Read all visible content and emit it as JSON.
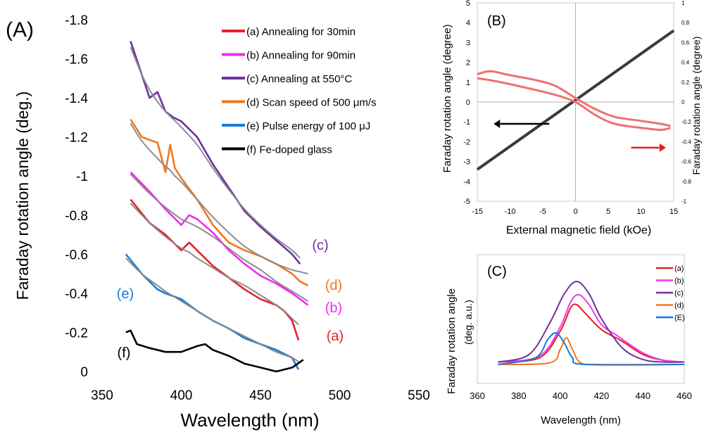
{
  "chart_data": [
    {
      "panel": "(A)",
      "type": "line",
      "xlabel": "Wavelength (nm)",
      "ylabel": "Faraday rotation angle (deg.)",
      "xlim": [
        350,
        550
      ],
      "ylim": [
        0,
        -1.8
      ],
      "y_inverted": true,
      "x_ticks": [
        "350",
        "400",
        "450",
        "500",
        "550"
      ],
      "y_ticks": [
        "-1.8",
        "-1.6",
        "-1.4",
        "-1.2",
        "-1",
        "-0.8",
        "-0.6",
        "-0.4",
        "-0.2",
        "0"
      ],
      "legend_position": "top-right",
      "fit_color": "#8c8c8c",
      "series": [
        {
          "name": "(a) Annealing for 30min",
          "label": "(a)",
          "color": "#e8202a",
          "x": [
            368,
            380,
            390,
            400,
            405,
            410,
            420,
            430,
            440,
            450,
            460,
            465,
            470,
            474
          ],
          "y": [
            -0.88,
            -0.76,
            -0.7,
            -0.62,
            -0.66,
            -0.62,
            -0.54,
            -0.48,
            -0.42,
            -0.37,
            -0.34,
            -0.31,
            -0.26,
            -0.16
          ],
          "fit": [
            -0.86,
            -0.76,
            -0.69,
            -0.63,
            -0.61,
            -0.58,
            -0.53,
            -0.48,
            -0.44,
            -0.39,
            -0.34,
            -0.31,
            -0.27,
            -0.24
          ]
        },
        {
          "name": "(b) Annealing for 90min",
          "label": "(b)",
          "color": "#ee2cf0",
          "x": [
            368,
            380,
            390,
            400,
            405,
            410,
            420,
            430,
            440,
            450,
            460,
            470,
            480
          ],
          "y": [
            -1.02,
            -0.92,
            -0.83,
            -0.75,
            -0.8,
            -0.78,
            -0.71,
            -0.62,
            -0.55,
            -0.49,
            -0.45,
            -0.4,
            -0.34
          ],
          "fit": [
            -1.01,
            -0.91,
            -0.84,
            -0.78,
            -0.76,
            -0.74,
            -0.69,
            -0.63,
            -0.57,
            -0.52,
            -0.46,
            -0.41,
            -0.36
          ]
        },
        {
          "name": "(c) Annealing at 550°C",
          "label": "(c)",
          "color": "#7030a0",
          "x": [
            368,
            375,
            380,
            385,
            390,
            395,
            400,
            410,
            420,
            430,
            440,
            450,
            460,
            470,
            475
          ],
          "y": [
            -1.69,
            -1.52,
            -1.4,
            -1.43,
            -1.33,
            -1.3,
            -1.28,
            -1.2,
            -1.06,
            -0.94,
            -0.82,
            -0.74,
            -0.67,
            -0.6,
            -0.55
          ],
          "fit": [
            -1.66,
            -1.52,
            -1.44,
            -1.38,
            -1.33,
            -1.29,
            -1.25,
            -1.16,
            -1.04,
            -0.93,
            -0.83,
            -0.75,
            -0.68,
            -0.62,
            -0.58
          ]
        },
        {
          "name": "(d) Scan speed of 500 μm/s",
          "label": "(d)",
          "color": "#f07820",
          "x": [
            368,
            375,
            385,
            390,
            393,
            396,
            400,
            410,
            420,
            430,
            440,
            450,
            460,
            470,
            475,
            480
          ],
          "y": [
            -1.29,
            -1.2,
            -1.17,
            -1.02,
            -1.16,
            -1.04,
            -0.99,
            -0.88,
            -0.75,
            -0.66,
            -0.62,
            -0.59,
            -0.55,
            -0.5,
            -0.46,
            -0.44
          ],
          "fit": [
            -1.27,
            -1.18,
            -1.09,
            -1.05,
            -1.03,
            -1.0,
            -0.97,
            -0.88,
            -0.79,
            -0.71,
            -0.64,
            -0.59,
            -0.55,
            -0.52,
            -0.51,
            -0.5
          ]
        },
        {
          "name": "(e) Pulse energy of 100 μJ",
          "label": "(e)",
          "color": "#1c7cd6",
          "x": [
            365,
            375,
            385,
            390,
            400,
            410,
            420,
            430,
            440,
            450,
            460,
            470,
            474
          ],
          "y": [
            -0.6,
            -0.5,
            -0.42,
            -0.4,
            -0.37,
            -0.31,
            -0.26,
            -0.22,
            -0.17,
            -0.14,
            -0.11,
            -0.07,
            -0.01
          ],
          "fit": [
            -0.58,
            -0.5,
            -0.44,
            -0.41,
            -0.36,
            -0.31,
            -0.26,
            -0.22,
            -0.18,
            -0.14,
            -0.1,
            -0.07,
            -0.05
          ]
        },
        {
          "name": "(f) Fe-doped glass",
          "label": "(f)",
          "color": "#000000",
          "x": [
            365,
            368,
            372,
            380,
            390,
            400,
            410,
            415,
            420,
            430,
            440,
            450,
            460,
            470,
            477
          ],
          "y": [
            -0.2,
            -0.21,
            -0.14,
            -0.12,
            -0.1,
            -0.1,
            -0.13,
            -0.14,
            -0.11,
            -0.08,
            -0.04,
            -0.02,
            0.0,
            -0.02,
            -0.06
          ]
        }
      ]
    },
    {
      "panel": "(B)",
      "type": "line",
      "xlabel": "External magnetic field (kOe)",
      "ylabel": "Faraday rotation angle (degree)",
      "y2label": "Faraday rotation angle (degree)",
      "xlim": [
        -15,
        15
      ],
      "ylim": [
        -5,
        5
      ],
      "y2lim": [
        -1,
        1
      ],
      "x_ticks": [
        "-15",
        "-10",
        "-5",
        "0",
        "5",
        "10",
        "15"
      ],
      "y_ticks": [
        "5",
        "4",
        "3",
        "2",
        "1",
        "0",
        "-1",
        "-2",
        "-3",
        "-4",
        "-5"
      ],
      "y2_ticks": [
        "1",
        "0.8",
        "0.6",
        "0.4",
        "0.2",
        "0",
        "-0.2",
        "-0.4",
        "-0.6",
        "-0.8",
        "-1"
      ],
      "series": [
        {
          "name": "black",
          "color": "#3a3a3a",
          "axis": "left",
          "x": [
            -15,
            15
          ],
          "y": [
            -3.4,
            3.6
          ]
        },
        {
          "name": "red-upper",
          "color": "#f07070",
          "axis": "right",
          "x": [
            -15,
            -13,
            -10,
            -6,
            -3,
            0,
            3,
            6,
            10,
            13,
            14.5
          ],
          "y": [
            0.28,
            0.31,
            0.27,
            0.22,
            0.16,
            0.04,
            -0.07,
            -0.15,
            -0.19,
            -0.22,
            -0.24
          ]
        },
        {
          "name": "red-lower",
          "color": "#f07070",
          "axis": "right",
          "x": [
            -15,
            -13,
            -10,
            -6,
            -3,
            0,
            3,
            6,
            10,
            13,
            14.5
          ],
          "y": [
            0.24,
            0.22,
            0.18,
            0.12,
            0.07,
            0.0,
            -0.13,
            -0.22,
            -0.26,
            -0.28,
            -0.26
          ]
        }
      ]
    },
    {
      "panel": "(C)",
      "type": "line",
      "xlabel": "Wavelength (nm)",
      "ylabel": "Faraday rotation angle",
      "ylabel2": "(deg.  a.u.)",
      "xlim": [
        360,
        460
      ],
      "x_ticks": [
        "360",
        "380",
        "400",
        "420",
        "440",
        "460"
      ],
      "legend_position": "top-right",
      "series": [
        {
          "name": "(a)",
          "color": "#e02020",
          "x": [
            370,
            390,
            400,
            405,
            408,
            412,
            420,
            430,
            440,
            450,
            460
          ],
          "y": [
            0.03,
            0.08,
            0.4,
            0.68,
            0.72,
            0.62,
            0.42,
            0.28,
            0.12,
            0.05,
            0.03
          ]
        },
        {
          "name": "(b)",
          "color": "#f038f0",
          "x": [
            370,
            390,
            400,
            405,
            409,
            414,
            420,
            428,
            440,
            450,
            460
          ],
          "y": [
            0.03,
            0.1,
            0.45,
            0.75,
            0.84,
            0.72,
            0.48,
            0.34,
            0.14,
            0.05,
            0.03
          ]
        },
        {
          "name": "(c)",
          "color": "#7030a0",
          "x": [
            370,
            385,
            395,
            402,
            408,
            414,
            420,
            430,
            440,
            450,
            460
          ],
          "y": [
            0.03,
            0.12,
            0.5,
            0.85,
            1.0,
            0.85,
            0.55,
            0.2,
            0.06,
            0.03,
            0.03
          ]
        },
        {
          "name": "(d)",
          "color": "#f07820",
          "x": [
            370,
            395,
            400,
            403,
            406,
            410,
            420,
            460
          ],
          "y": [
            0.0,
            0.02,
            0.18,
            0.32,
            0.18,
            0.02,
            0.0,
            0.0
          ]
        },
        {
          "name": "(E)",
          "color": "#1c78d8",
          "x": [
            370,
            388,
            394,
            398,
            402,
            406,
            412,
            460
          ],
          "y": [
            0.0,
            0.08,
            0.3,
            0.38,
            0.26,
            0.08,
            0.0,
            0.0
          ]
        }
      ]
    }
  ],
  "ui": {
    "arrow_black_color": "#000000",
    "arrow_red_color": "#e02020"
  }
}
